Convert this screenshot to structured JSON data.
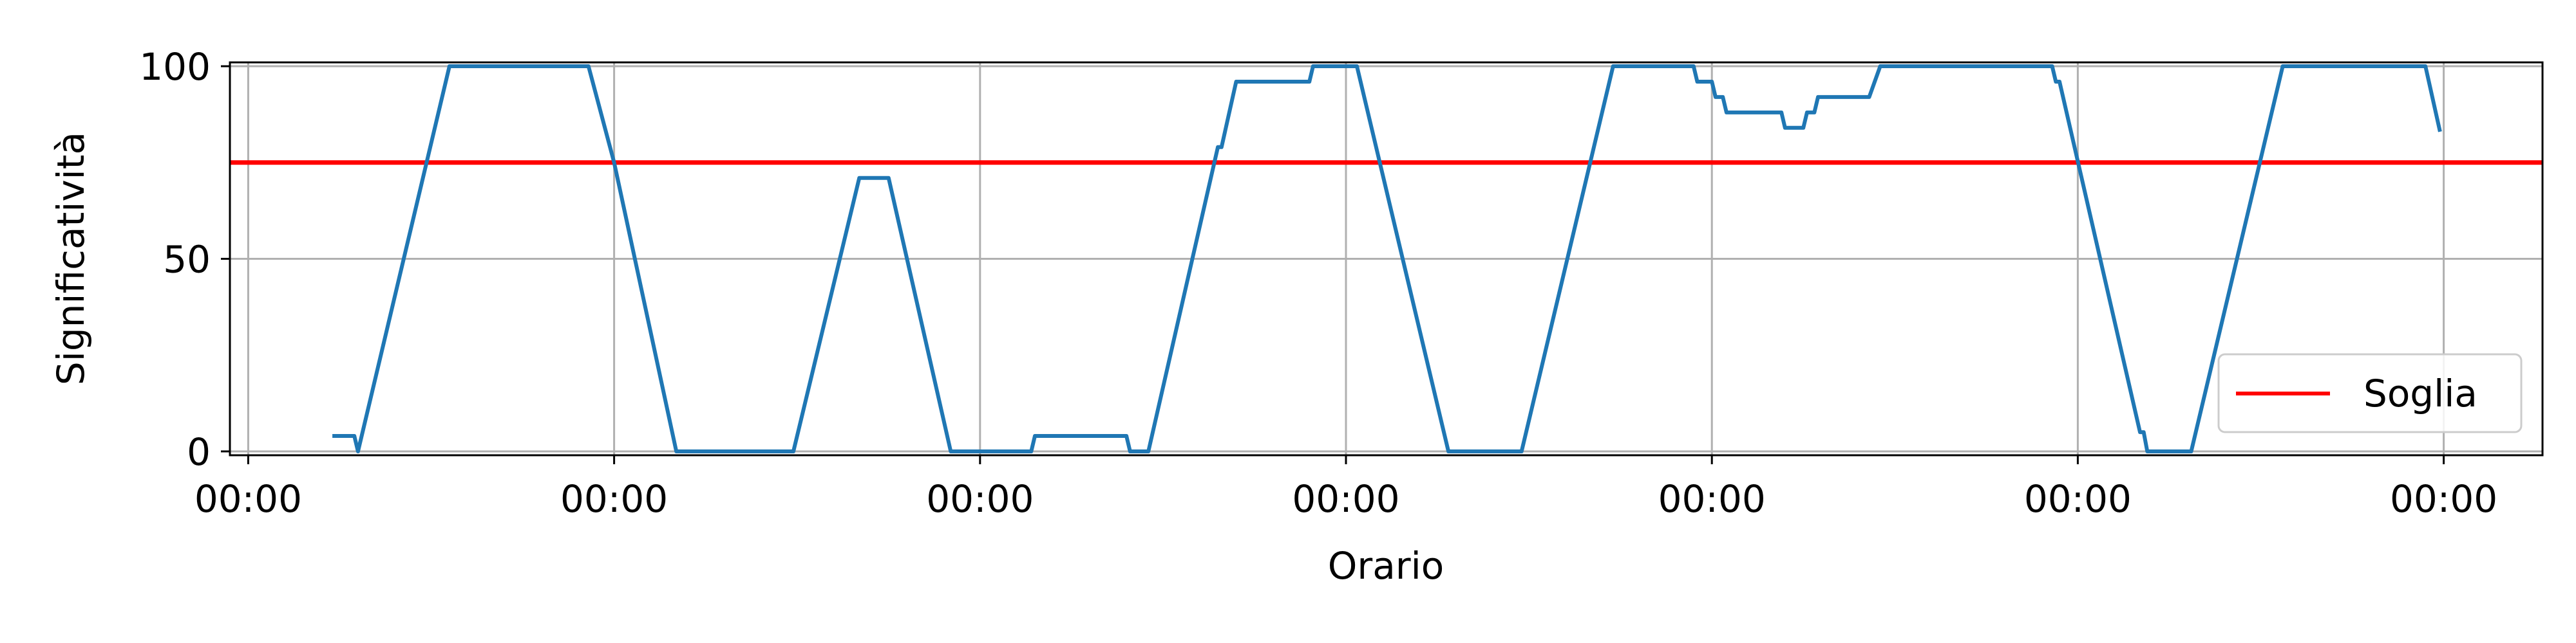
{
  "chart_data": {
    "type": "line",
    "xlabel": "Orario",
    "ylabel": "Significatività",
    "ylim": [
      -1,
      101
    ],
    "xlim": [
      -0.05,
      6.27
    ],
    "grid": true,
    "legend_position": "lower-right",
    "x_ticks": [
      {
        "value": 0,
        "label": "00:00"
      },
      {
        "value": 1,
        "label": "00:00"
      },
      {
        "value": 2,
        "label": "00:00"
      },
      {
        "value": 3,
        "label": "00:00"
      },
      {
        "value": 4,
        "label": "00:00"
      },
      {
        "value": 5,
        "label": "00:00"
      },
      {
        "value": 6,
        "label": "00:00"
      }
    ],
    "y_ticks": [
      {
        "value": 0,
        "label": "0"
      },
      {
        "value": 50,
        "label": "50"
      },
      {
        "value": 100,
        "label": "100"
      }
    ],
    "threshold": {
      "name": "Soglia",
      "value": 75,
      "color": "#ff0000"
    },
    "series": [
      {
        "color": "#1f77b4",
        "points": [
          [
            0.23,
            4
          ],
          [
            0.29,
            4
          ],
          [
            0.3,
            0
          ],
          [
            0.55,
            100
          ],
          [
            0.93,
            100
          ],
          [
            1.0,
            75
          ],
          [
            1.17,
            0
          ],
          [
            1.49,
            0
          ],
          [
            1.67,
            71
          ],
          [
            1.75,
            71
          ],
          [
            1.92,
            0
          ],
          [
            2.14,
            0
          ],
          [
            2.15,
            4
          ],
          [
            2.4,
            4
          ],
          [
            2.41,
            0
          ],
          [
            2.46,
            0
          ],
          [
            2.65,
            79
          ],
          [
            2.66,
            79
          ],
          [
            2.7,
            96
          ],
          [
            2.9,
            96
          ],
          [
            2.91,
            100
          ],
          [
            3.03,
            100
          ],
          [
            3.28,
            0
          ],
          [
            3.48,
            0
          ],
          [
            3.73,
            100
          ],
          [
            3.95,
            100
          ],
          [
            3.96,
            96
          ],
          [
            4.0,
            96
          ],
          [
            4.01,
            92
          ],
          [
            4.03,
            92
          ],
          [
            4.04,
            88
          ],
          [
            4.19,
            88
          ],
          [
            4.2,
            84
          ],
          [
            4.25,
            84
          ],
          [
            4.26,
            88
          ],
          [
            4.28,
            88
          ],
          [
            4.29,
            92
          ],
          [
            4.43,
            92
          ],
          [
            4.46,
            100
          ],
          [
            4.93,
            100
          ],
          [
            4.94,
            96
          ],
          [
            4.95,
            96
          ],
          [
            5.17,
            5
          ],
          [
            5.18,
            5
          ],
          [
            5.19,
            0
          ],
          [
            5.31,
            0
          ],
          [
            5.56,
            100
          ],
          [
            5.95,
            100
          ],
          [
            5.99,
            83
          ]
        ]
      }
    ]
  }
}
